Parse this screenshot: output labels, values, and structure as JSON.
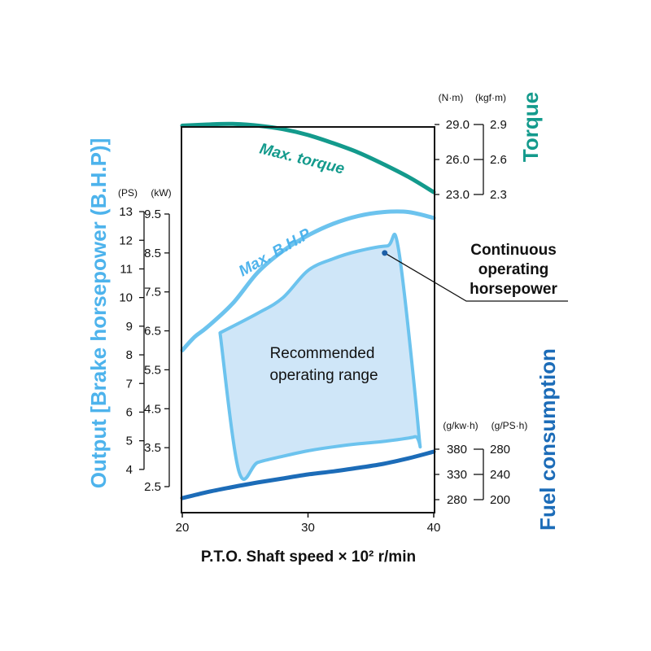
{
  "chart_data": {
    "type": "line",
    "x": {
      "label": "P.T.O. Shaft speed × 10² r/min",
      "range": [
        20,
        40
      ],
      "ticks": [
        20,
        30,
        40
      ]
    },
    "output_axis": {
      "title": "Output [Brake horsepower (B.H.P)]",
      "kw_unit": "(kW)",
      "kw_ticks": [
        "9.5",
        "8.5",
        "7.5",
        "6.5",
        "5.5",
        "4.5",
        "3.5",
        "2.5"
      ],
      "ps_unit": "(PS)",
      "ps_ticks": [
        "13",
        "12",
        "11",
        "10",
        "9",
        "8",
        "7",
        "6",
        "5",
        "4"
      ],
      "kw_range": [
        1.9,
        11.0
      ]
    },
    "torque_axis": {
      "title": "Torque",
      "nm_unit": "(N·m)",
      "nm_ticks": [
        "29.0",
        "26.0",
        "23.0"
      ],
      "kgfm_unit": "(kgf·m)",
      "kgfm_ticks": [
        "2.9",
        "2.6",
        "2.3"
      ],
      "nm_range": [
        23.0,
        29.0
      ]
    },
    "fuel_axis": {
      "title": "Fuel consumption",
      "gkwh_unit": "(g/kw·h)",
      "gkwh_ticks": [
        "380",
        "330",
        "280"
      ],
      "gpsh_unit": "(g/PS·h)",
      "gpsh_ticks": [
        "280",
        "240",
        "200"
      ],
      "gkwh_range": [
        280,
        380
      ]
    },
    "series": [
      {
        "name": "Max. torque",
        "axis": "torque_Nm",
        "color": "#139a8c",
        "points": [
          [
            20,
            28.9
          ],
          [
            22,
            29.0
          ],
          [
            24,
            29.05
          ],
          [
            26,
            28.9
          ],
          [
            28,
            28.6
          ],
          [
            30,
            28.1
          ],
          [
            32,
            27.4
          ],
          [
            34,
            26.6
          ],
          [
            36,
            25.6
          ],
          [
            38,
            24.5
          ],
          [
            40,
            23.2
          ]
        ]
      },
      {
        "name": "Max. B.H.P",
        "axis": "output_kW",
        "color": "#6cc3ee",
        "points": [
          [
            20,
            6.0
          ],
          [
            21,
            6.35
          ],
          [
            22,
            6.6
          ],
          [
            24,
            7.2
          ],
          [
            26,
            8.0
          ],
          [
            28,
            8.55
          ],
          [
            30,
            8.95
          ],
          [
            32,
            9.25
          ],
          [
            34,
            9.45
          ],
          [
            36,
            9.55
          ],
          [
            38,
            9.55
          ],
          [
            40,
            9.4
          ]
        ]
      },
      {
        "name": "Fuel consumption",
        "axis": "fuel_gkwh",
        "color": "#1c6cb8",
        "points": [
          [
            20,
            283
          ],
          [
            22,
            295
          ],
          [
            24,
            305
          ],
          [
            26,
            314
          ],
          [
            28,
            322
          ],
          [
            30,
            330
          ],
          [
            32,
            336
          ],
          [
            34,
            343
          ],
          [
            36,
            351
          ],
          [
            38,
            362
          ],
          [
            40,
            375
          ]
        ]
      }
    ],
    "region": {
      "label_lines": [
        "Recommended",
        "operating range"
      ],
      "color": "#cfe6f8",
      "border": "#6cc3ee",
      "boundary_kW": [
        [
          23.0,
          6.45
        ],
        [
          24.5,
          2.9
        ],
        [
          26,
          3.12
        ],
        [
          28,
          3.28
        ],
        [
          30,
          3.42
        ],
        [
          32,
          3.52
        ],
        [
          34,
          3.6
        ],
        [
          36,
          3.66
        ],
        [
          38.5,
          3.78
        ],
        [
          38.8,
          3.9
        ],
        [
          37.2,
          8.6
        ],
        [
          36.3,
          8.68
        ],
        [
          34,
          8.55
        ],
        [
          32,
          8.35
        ],
        [
          30,
          8.05
        ],
        [
          28,
          7.35
        ],
        [
          26,
          6.95
        ],
        [
          23.0,
          6.45
        ]
      ]
    },
    "annotation": {
      "text_lines": [
        "Continuous",
        "operating",
        "horsepower"
      ],
      "point": [
        36.1,
        8.5
      ]
    }
  },
  "colors": {
    "torque": "#139a8c",
    "bhp": "#6cc3ee",
    "fuel": "#1c6cb8",
    "output_title": "#4db3ec",
    "fuel_title": "#1c6cb8"
  }
}
